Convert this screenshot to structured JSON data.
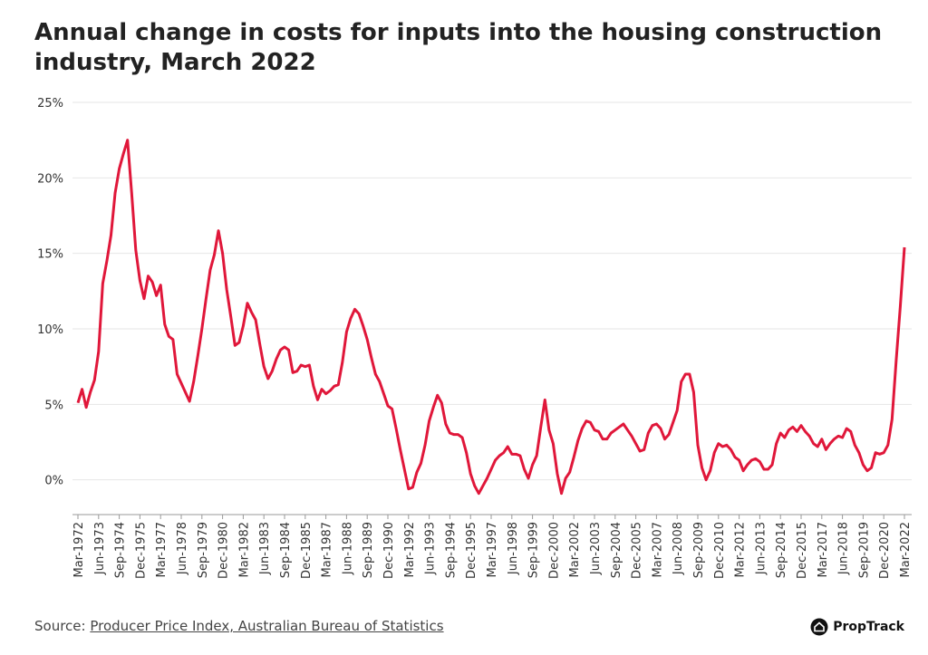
{
  "chart_data": {
    "type": "line",
    "title": "Annual change in costs for inputs into the housing construction industry, March 2022",
    "categories": [
      "Mar-1972",
      null,
      null,
      null,
      null,
      "Jun-1973",
      null,
      null,
      null,
      null,
      "Sep-1974",
      null,
      null,
      null,
      null,
      "Dec-1975",
      null,
      null,
      null,
      null,
      "Mar-1977",
      null,
      null,
      null,
      null,
      "Jun-1978",
      null,
      null,
      null,
      null,
      "Sep-1979",
      null,
      null,
      null,
      null,
      "Dec-1980",
      null,
      null,
      null,
      null,
      "Mar-1982",
      null,
      null,
      null,
      null,
      "Jun-1983",
      null,
      null,
      null,
      null,
      "Sep-1984",
      null,
      null,
      null,
      null,
      "Dec-1985",
      null,
      null,
      null,
      null,
      "Mar-1987",
      null,
      null,
      null,
      null,
      "Jun-1988",
      null,
      null,
      null,
      null,
      "Sep-1989",
      null,
      null,
      null,
      null,
      "Dec-1990",
      null,
      null,
      null,
      null,
      "Mar-1992",
      null,
      null,
      null,
      null,
      "Jun-1993",
      null,
      null,
      null,
      null,
      "Sep-1994",
      null,
      null,
      null,
      null,
      "Dec-1995",
      null,
      null,
      null,
      null,
      "Mar-1997",
      null,
      null,
      null,
      null,
      "Jun-1998",
      null,
      null,
      null,
      null,
      "Sep-1999",
      null,
      null,
      null,
      null,
      "Dec-2000",
      null,
      null,
      null,
      null,
      "Mar-2002",
      null,
      null,
      null,
      null,
      "Jun-2003",
      null,
      null,
      null,
      null,
      "Sep-2004",
      null,
      null,
      null,
      null,
      "Dec-2005",
      null,
      null,
      null,
      null,
      "Mar-2007",
      null,
      null,
      null,
      null,
      "Jun-2008",
      null,
      null,
      null,
      null,
      "Sep-2009",
      null,
      null,
      null,
      null,
      "Dec-2010",
      null,
      null,
      null,
      null,
      "Mar-2012",
      null,
      null,
      null,
      null,
      "Jun-2013",
      null,
      null,
      null,
      null,
      "Sep-2014",
      null,
      null,
      null,
      null,
      "Dec-2015",
      null,
      null,
      null,
      null,
      "Mar-2017",
      null,
      null,
      null,
      null,
      "Jun-2018",
      null,
      null,
      null,
      null,
      "Sep-2019",
      null,
      null,
      null,
      null,
      "Dec-2020",
      null,
      null,
      null,
      null,
      "Mar-2022"
    ],
    "values": [
      5.1,
      6.0,
      4.8,
      5.8,
      6.6,
      8.5,
      13.0,
      14.5,
      16.2,
      19.0,
      20.6,
      21.6,
      22.5,
      19.0,
      15.2,
      13.2,
      12.0,
      13.5,
      13.1,
      12.2,
      12.9,
      10.3,
      9.5,
      9.3,
      7.0,
      6.4,
      5.8,
      5.2,
      6.5,
      8.2,
      10.0,
      12.0,
      13.9,
      14.9,
      16.5,
      15.0,
      12.6,
      10.8,
      8.9,
      9.1,
      10.2,
      11.7,
      11.1,
      10.6,
      9.0,
      7.5,
      6.7,
      7.2,
      8.0,
      8.6,
      8.8,
      8.6,
      7.1,
      7.2,
      7.6,
      7.5,
      7.6,
      6.2,
      5.3,
      6.0,
      5.7,
      5.9,
      6.2,
      6.3,
      7.8,
      9.8,
      10.7,
      11.3,
      11.0,
      10.2,
      9.3,
      8.1,
      7.0,
      6.5,
      5.7,
      4.9,
      4.7,
      3.4,
      2.0,
      0.7,
      -0.6,
      -0.5,
      0.5,
      1.1,
      2.3,
      3.9,
      4.8,
      5.6,
      5.1,
      3.7,
      3.1,
      3.0,
      3.0,
      2.8,
      1.8,
      0.4,
      -0.4,
      -0.9,
      -0.4,
      0.1,
      0.7,
      1.3,
      1.6,
      1.8,
      2.2,
      1.7,
      1.7,
      1.6,
      0.7,
      0.1,
      1.0,
      1.6,
      3.5,
      5.3,
      3.3,
      2.4,
      0.4,
      -0.9,
      0.1,
      0.5,
      1.5,
      2.6,
      3.4,
      3.9,
      3.8,
      3.3,
      3.2,
      2.7,
      2.7,
      3.1,
      3.3,
      3.5,
      3.7,
      3.3,
      2.9,
      2.4,
      1.9,
      2.0,
      3.1,
      3.6,
      3.7,
      3.4,
      2.7,
      3.0,
      3.8,
      4.6,
      6.5,
      7.0,
      7.0,
      5.8,
      2.3,
      0.8,
      0.0,
      0.6,
      1.8,
      2.4,
      2.2,
      2.3,
      2.0,
      1.5,
      1.3,
      0.6,
      1.0,
      1.3,
      1.4,
      1.2,
      0.7,
      0.7,
      1.0,
      2.4,
      3.1,
      2.8,
      3.3,
      3.5,
      3.2,
      3.6,
      3.2,
      2.9,
      2.4,
      2.2,
      2.7,
      2.0,
      2.4,
      2.7,
      2.9,
      2.8,
      3.4,
      3.2,
      2.3,
      1.8,
      1.0,
      0.6,
      0.8,
      1.8,
      1.7,
      1.8,
      2.3,
      4.0,
      7.9,
      11.5,
      15.4
    ],
    "color": "#e0173a",
    "ylim": [
      -2.3,
      25
    ],
    "yticks": [
      {
        "value": 0,
        "label": "0%"
      },
      {
        "value": 5,
        "label": "5%"
      },
      {
        "value": 10,
        "label": "10%"
      },
      {
        "value": 15,
        "label": "15%"
      },
      {
        "value": 20,
        "label": "20%"
      },
      {
        "value": 25,
        "label": "25%"
      }
    ],
    "grid": true,
    "source_prefix": "Source:",
    "source": "Producer Price Index, Australian Bureau of Statistics",
    "brand": "PropTrack"
  }
}
